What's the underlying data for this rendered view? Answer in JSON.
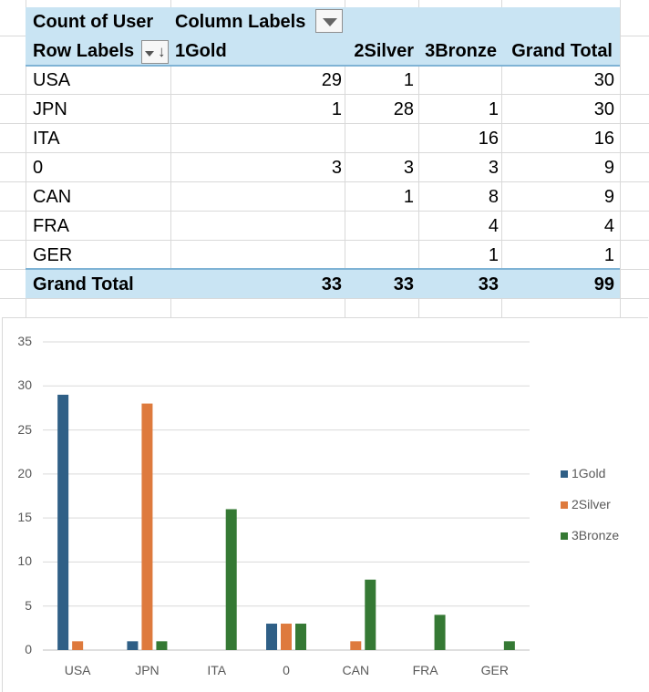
{
  "pivot": {
    "value_field": "Count of User",
    "column_labels": "Column Labels",
    "row_labels": "Row Labels",
    "columns": [
      "1Gold",
      "2Silver",
      "3Bronze",
      "Grand Total"
    ],
    "rows": [
      {
        "label": "USA",
        "gold": "29",
        "silver": "1",
        "bronze": "",
        "total": "30"
      },
      {
        "label": "JPN",
        "gold": "1",
        "silver": "28",
        "bronze": "1",
        "total": "30"
      },
      {
        "label": "ITA",
        "gold": "",
        "silver": "",
        "bronze": "16",
        "total": "16"
      },
      {
        "label": "0",
        "gold": "3",
        "silver": "3",
        "bronze": "3",
        "total": "9"
      },
      {
        "label": "CAN",
        "gold": "",
        "silver": "1",
        "bronze": "8",
        "total": "9"
      },
      {
        "label": "FRA",
        "gold": "",
        "silver": "",
        "bronze": "4",
        "total": "4"
      },
      {
        "label": "GER",
        "gold": "",
        "silver": "",
        "bronze": "1",
        "total": "1"
      }
    ],
    "grand_total": {
      "label": "Grand Total",
      "gold": "33",
      "silver": "33",
      "bronze": "33",
      "total": "99"
    }
  },
  "colors": {
    "gold": "#2f5f86",
    "silver": "#de7a3d",
    "bronze": "#357934",
    "header_band": "#c9e4f3"
  },
  "icons": {
    "filter_dropdown": "dropdown-arrow-icon",
    "sort_dropdown": "sort-filter-icon"
  },
  "chart_data": {
    "type": "bar",
    "title": "",
    "xlabel": "",
    "ylabel": "",
    "categories": [
      "USA",
      "JPN",
      "ITA",
      "0",
      "CAN",
      "FRA",
      "GER"
    ],
    "series": [
      {
        "name": "1Gold",
        "values": [
          29,
          1,
          0,
          3,
          0,
          0,
          0
        ]
      },
      {
        "name": "2Silver",
        "values": [
          1,
          28,
          0,
          3,
          1,
          0,
          0
        ]
      },
      {
        "name": "3Bronze",
        "values": [
          0,
          1,
          16,
          3,
          8,
          4,
          1
        ]
      }
    ],
    "ylim": [
      0,
      35
    ],
    "yticks": [
      "0",
      "5",
      "10",
      "15",
      "20",
      "25",
      "30",
      "35"
    ],
    "grid": true,
    "legend": "right"
  }
}
